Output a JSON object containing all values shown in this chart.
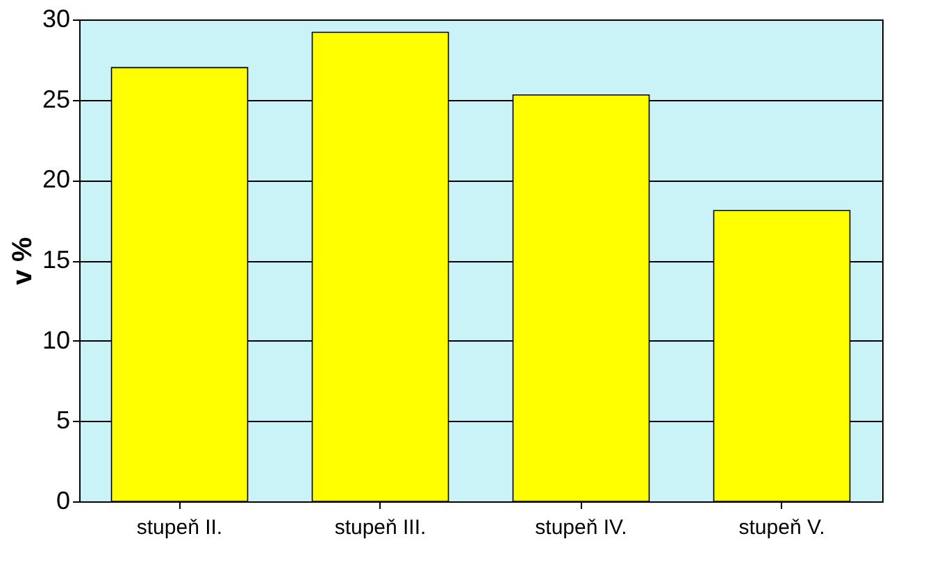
{
  "chart_data": {
    "type": "bar",
    "ylabel": "v %",
    "categories": [
      "stupeň II.",
      "stupeň III.",
      "stupeň IV.",
      "stupeň V."
    ],
    "values": [
      27,
      29.2,
      25.3,
      18.1
    ],
    "color": "#ffff00",
    "ylim": [
      0,
      30
    ],
    "yticks": [
      0,
      5,
      10,
      15,
      20,
      25,
      30
    ],
    "grid": "y"
  }
}
